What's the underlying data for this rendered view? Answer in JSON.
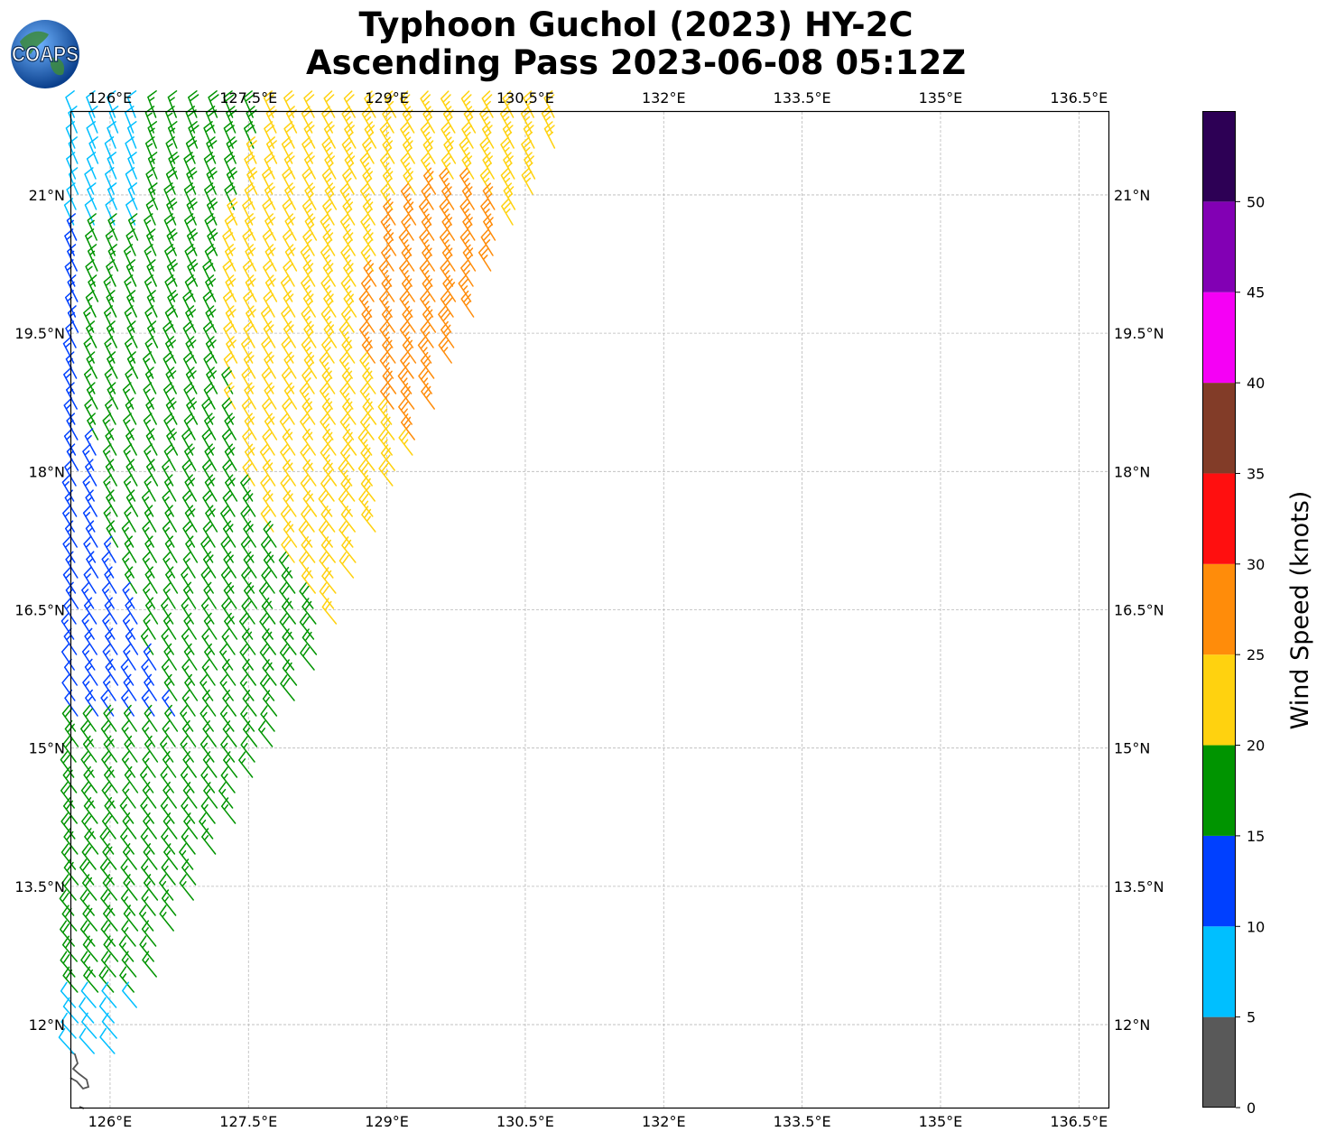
{
  "title": {
    "line1": "Typhoon Guchol (2023) HY-2C",
    "line2": "Ascending Pass 2023-06-08 05:12Z"
  },
  "logo": {
    "text": "COAPS",
    "icon": "globe-logo-icon"
  },
  "chart_data": {
    "type": "wind-barb-map",
    "lon_ticks": [
      "126°E",
      "127.5°E",
      "129°E",
      "130.5°E",
      "132°E",
      "133.5°E",
      "135°E",
      "136.5°E"
    ],
    "lon_tick_values": [
      126,
      127.5,
      129,
      130.5,
      132,
      133.5,
      135,
      136.5
    ],
    "lat_ticks": [
      "21°N",
      "19.5°N",
      "18°N",
      "16.5°N",
      "15°N",
      "13.5°N",
      "12°N"
    ],
    "lat_tick_values": [
      21,
      19.5,
      18,
      16.5,
      15,
      13.5,
      12
    ],
    "lon_range": [
      125.58,
      136.82
    ],
    "lat_range": [
      11.1,
      21.9
    ],
    "grid": true,
    "colorbar": {
      "label": "Wind Speed (knots)",
      "ticks": [
        "0",
        "5",
        "10",
        "15",
        "20",
        "25",
        "30",
        "35",
        "40",
        "45",
        "50"
      ],
      "bins": [
        {
          "from": 0,
          "to": 5,
          "color": "#595959"
        },
        {
          "from": 5,
          "to": 10,
          "color": "#00bfff"
        },
        {
          "from": 10,
          "to": 15,
          "color": "#0040ff"
        },
        {
          "from": 15,
          "to": 20,
          "color": "#009400"
        },
        {
          "from": 20,
          "to": 25,
          "color": "#ffd20f"
        },
        {
          "from": 25,
          "to": 30,
          "color": "#ff8c0a"
        },
        {
          "from": 30,
          "to": 35,
          "color": "#ff0f0f"
        },
        {
          "from": 35,
          "to": 40,
          "color": "#823c28"
        },
        {
          "from": 40,
          "to": 45,
          "color": "#f500f5"
        },
        {
          "from": 45,
          "to": 50,
          "color": "#8200b4"
        },
        {
          "from": 50,
          "to": 55,
          "color": "#2d0055"
        }
      ]
    }
  }
}
